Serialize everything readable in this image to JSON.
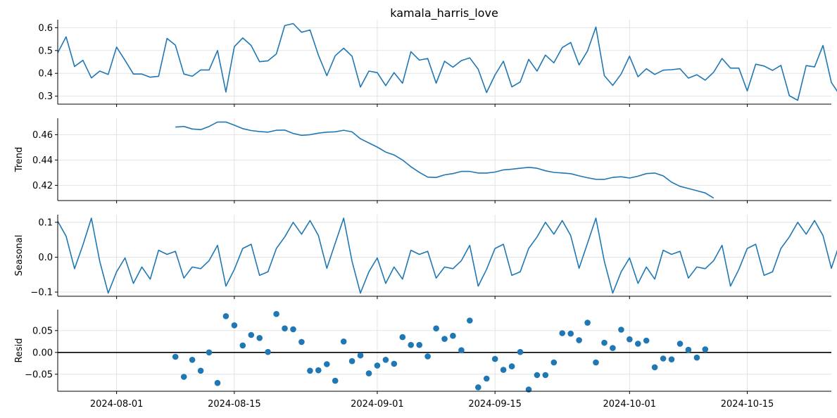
{
  "title": "kamala_harris_love",
  "colors": {
    "series": "#1f77b4",
    "grid": "#e3e3e3",
    "axis": "#000000",
    "zero_line": "#000000"
  },
  "x_axis": {
    "start": "2024-07-25",
    "end": "2024-10-25",
    "ticks": [
      "2024-08-01",
      "2024-08-15",
      "2024-09-01",
      "2024-09-15",
      "2024-10-01",
      "2024-10-15"
    ]
  },
  "chart_data": [
    {
      "type": "line",
      "title": "kamala_harris_love",
      "ylabel": "",
      "x_start": "2024-07-25",
      "ylim": [
        0.265,
        0.635
      ],
      "yticks": [
        "0.3",
        "0.4",
        "0.5",
        "0.6"
      ],
      "grid": true,
      "values": [
        0.49,
        0.56,
        0.43,
        0.457,
        0.38,
        0.41,
        0.395,
        0.515,
        0.457,
        0.397,
        0.397,
        0.383,
        0.387,
        0.553,
        0.523,
        0.397,
        0.387,
        0.415,
        0.415,
        0.5,
        0.318,
        0.517,
        0.555,
        0.522,
        0.451,
        0.455,
        0.485,
        0.609,
        0.618,
        0.58,
        0.59,
        0.48,
        0.39,
        0.477,
        0.51,
        0.475,
        0.34,
        0.41,
        0.403,
        0.346,
        0.403,
        0.357,
        0.495,
        0.458,
        0.465,
        0.357,
        0.453,
        0.427,
        0.456,
        0.468,
        0.418,
        0.316,
        0.393,
        0.453,
        0.341,
        0.362,
        0.461,
        0.41,
        0.48,
        0.446,
        0.513,
        0.535,
        0.437,
        0.498,
        0.603,
        0.39,
        0.347,
        0.397,
        0.475,
        0.385,
        0.42,
        0.395,
        0.414,
        0.416,
        0.42,
        0.379,
        0.394,
        0.37,
        0.405,
        0.465,
        0.423,
        0.423,
        0.323,
        0.44,
        0.432,
        0.413,
        0.435,
        0.302,
        0.282,
        0.434,
        0.428,
        0.522,
        0.36,
        0.305
      ]
    },
    {
      "type": "line",
      "title": "",
      "ylabel": "Trend",
      "x_start": "2024-08-08",
      "ylim": [
        0.408,
        0.473
      ],
      "yticks": [
        "0.42",
        "0.44",
        "0.46"
      ],
      "grid": true,
      "values": [
        0.466,
        0.4665,
        0.4645,
        0.464,
        0.4665,
        0.47,
        0.47,
        0.4675,
        0.4648,
        0.4633,
        0.4625,
        0.462,
        0.4635,
        0.4636,
        0.461,
        0.4595,
        0.46,
        0.4612,
        0.462,
        0.4623,
        0.4635,
        0.4622,
        0.4568,
        0.4535,
        0.4502,
        0.4463,
        0.444,
        0.44,
        0.4347,
        0.4303,
        0.4265,
        0.4262,
        0.4283,
        0.4293,
        0.431,
        0.431,
        0.4297,
        0.4297,
        0.4305,
        0.4322,
        0.4328,
        0.4335,
        0.4342,
        0.4335,
        0.4315,
        0.4302,
        0.4298,
        0.4292,
        0.4275,
        0.426,
        0.4248,
        0.4247,
        0.4263,
        0.4268,
        0.4258,
        0.4272,
        0.4293,
        0.4297,
        0.4275,
        0.4225,
        0.4192,
        0.4175,
        0.4158,
        0.414,
        0.41
      ]
    },
    {
      "type": "line",
      "title": "",
      "ylabel": "Seasonal",
      "x_start": "2024-07-25",
      "ylim": [
        -0.112,
        0.122
      ],
      "yticks": [
        "−0.1",
        "0.0",
        "0.1"
      ],
      "grid": true,
      "values": [
        0.103,
        0.06,
        -0.033,
        0.035,
        0.112,
        -0.012,
        -0.103,
        -0.042,
        -0.002,
        -0.075,
        -0.028,
        -0.063,
        0.02,
        0.008,
        0.017,
        -0.06,
        -0.028,
        -0.033,
        -0.01,
        0.034,
        -0.083,
        -0.035,
        0.025,
        0.037,
        -0.052,
        -0.042,
        0.025,
        0.058,
        0.1,
        0.066,
        0.105,
        0.062,
        -0.032,
        0.04,
        0.112,
        -0.012,
        -0.103,
        -0.042,
        -0.002,
        -0.075,
        -0.028,
        -0.063,
        0.02,
        0.008,
        0.017,
        -0.06,
        -0.028,
        -0.033,
        -0.01,
        0.034,
        -0.083,
        -0.035,
        0.025,
        0.037,
        -0.052,
        -0.042,
        0.025,
        0.058,
        0.1,
        0.066,
        0.105,
        0.062,
        -0.032,
        0.04,
        0.112,
        -0.012,
        -0.103,
        -0.042,
        -0.002,
        -0.075,
        -0.028,
        -0.063,
        0.02,
        0.008,
        0.017,
        -0.06,
        -0.028,
        -0.033,
        -0.01,
        0.034,
        -0.083,
        -0.035,
        0.025,
        0.037,
        -0.052,
        -0.042,
        0.025,
        0.058,
        0.1,
        0.066,
        0.105,
        0.062,
        -0.032,
        0.04
      ]
    },
    {
      "type": "scatter",
      "title": "",
      "ylabel": "Resid",
      "x_start": "2024-08-08",
      "ylim": [
        -0.089,
        0.098
      ],
      "yticks": [
        "−0.05",
        "0.00",
        "0.05"
      ],
      "grid": true,
      "zero_line": true,
      "values": [
        -0.01,
        -0.056,
        -0.017,
        -0.042,
        0.0,
        -0.07,
        0.083,
        0.062,
        0.016,
        0.04,
        0.033,
        0.001,
        0.088,
        0.055,
        0.053,
        0.024,
        -0.042,
        -0.041,
        -0.027,
        -0.065,
        0.025,
        -0.02,
        -0.007,
        -0.048,
        -0.03,
        -0.017,
        -0.026,
        0.035,
        0.017,
        0.017,
        -0.009,
        0.055,
        0.031,
        0.038,
        0.005,
        0.073,
        -0.08,
        -0.06,
        -0.015,
        -0.04,
        -0.032,
        0.001,
        -0.085,
        -0.052,
        -0.052,
        -0.023,
        0.044,
        0.043,
        0.028,
        0.068,
        -0.023,
        0.022,
        0.01,
        0.052,
        0.03,
        0.02,
        0.027,
        -0.034,
        -0.014,
        -0.016,
        0.02,
        0.006,
        -0.012,
        0.007
      ]
    }
  ]
}
